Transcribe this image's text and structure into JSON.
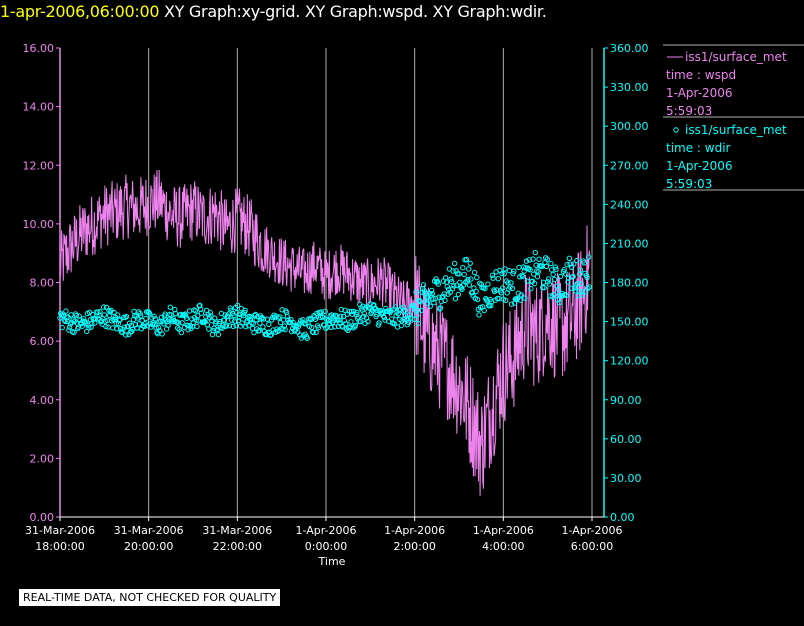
{
  "header": {
    "timestamp": "1-apr-2006,06:00:00",
    "title": "XY Graph:xy-grid.  XY Graph:wspd.  XY Graph:wdir."
  },
  "notice": "REAL-TIME DATA, NOT CHECKED FOR QUALITY",
  "colors": {
    "background": "#000000",
    "wspd": "#ee82ee",
    "wdir": "#00ffff",
    "grid": "#b0b0b0",
    "text": "#ffffff",
    "timestamp": "#ffff00"
  },
  "chart_data": {
    "type": "line",
    "xlabel": "Time",
    "x_ticks": [
      {
        "t": 18,
        "label": [
          "31-Mar-2006",
          "18:00:00"
        ]
      },
      {
        "t": 20,
        "label": [
          "31-Mar-2006",
          "20:00:00"
        ]
      },
      {
        "t": 22,
        "label": [
          "31-Mar-2006",
          "22:00:00"
        ]
      },
      {
        "t": 24,
        "label": [
          "1-Apr-2006",
          "0:00:00"
        ]
      },
      {
        "t": 26,
        "label": [
          "1-Apr-2006",
          "2:00:00"
        ]
      },
      {
        "t": 28,
        "label": [
          "1-Apr-2006",
          "4:00:00"
        ]
      },
      {
        "t": 30,
        "label": [
          "1-Apr-2006",
          "6:00:00"
        ]
      }
    ],
    "xlim": [
      18,
      30
    ],
    "grid": "vertical lines at each time tick",
    "left_axis": {
      "ylim": [
        0,
        16
      ],
      "ticks": [
        "0.00",
        "2.00",
        "4.00",
        "6.00",
        "8.00",
        "10.00",
        "12.00",
        "14.00",
        "16.00"
      ]
    },
    "right_axis": {
      "ylim": [
        0,
        360
      ],
      "ticks": [
        "0.00",
        "30.00",
        "60.00",
        "90.00",
        "120.00",
        "150.00",
        "180.00",
        "210.00",
        "240.00",
        "270.00",
        "300.00",
        "330.00",
        "360.00"
      ]
    },
    "legend": [
      {
        "lines": [
          "iss1/surface_met",
          "time : wspd",
          "1-Apr-2006",
          "5:59:03"
        ],
        "marker": "line",
        "color": "#ee82ee"
      },
      {
        "lines": [
          "iss1/surface_met",
          "time : wdir",
          "1-Apr-2006",
          "5:59:03"
        ],
        "marker": "circle",
        "color": "#00ffff"
      }
    ],
    "series": [
      {
        "name": "iss1/surface_met time : wspd",
        "axis": "left",
        "style": "line",
        "x": [
          18.0,
          18.25,
          18.5,
          18.75,
          19.0,
          19.25,
          19.5,
          19.75,
          20.0,
          20.25,
          20.5,
          20.75,
          21.0,
          21.25,
          21.5,
          21.75,
          22.0,
          22.25,
          22.5,
          22.75,
          23.0,
          23.25,
          23.5,
          23.75,
          24.0,
          24.25,
          24.5,
          24.75,
          25.0,
          25.25,
          25.5,
          25.75,
          26.0,
          26.25,
          26.5,
          26.75,
          27.0,
          27.25,
          27.5,
          27.75,
          28.0,
          28.25,
          28.5,
          28.75,
          29.0,
          29.25,
          29.5,
          29.75,
          29.95
        ],
        "y": [
          8.6,
          9.2,
          9.7,
          10.0,
          10.3,
          10.4,
          10.6,
          10.5,
          10.7,
          10.8,
          10.3,
          10.2,
          10.5,
          10.2,
          10.4,
          9.8,
          10.2,
          9.9,
          9.4,
          9.0,
          8.7,
          8.5,
          8.3,
          8.6,
          8.2,
          8.5,
          8.3,
          8.0,
          7.9,
          8.1,
          7.6,
          7.2,
          7.4,
          6.2,
          5.6,
          5.2,
          4.5,
          3.6,
          2.4,
          3.8,
          5.0,
          5.5,
          6.6,
          6.2,
          6.9,
          6.4,
          6.7,
          7.4,
          8.5
        ],
        "noise": [
          {
            "from": 18.0,
            "to": 22.6,
            "amplitude": 1.1
          },
          {
            "from": 22.6,
            "to": 26.0,
            "amplitude": 0.9
          },
          {
            "from": 26.0,
            "to": 30.0,
            "amplitude": 1.9
          }
        ]
      },
      {
        "name": "iss1/surface_met time : wdir",
        "axis": "right",
        "style": "markers",
        "x": [
          18.0,
          18.25,
          18.5,
          18.75,
          19.0,
          19.25,
          19.5,
          19.75,
          20.0,
          20.25,
          20.5,
          20.75,
          21.0,
          21.25,
          21.5,
          21.75,
          22.0,
          22.25,
          22.5,
          22.75,
          23.0,
          23.25,
          23.5,
          23.75,
          24.0,
          24.25,
          24.5,
          24.75,
          25.0,
          25.25,
          25.5,
          25.75,
          26.0,
          26.25,
          26.5,
          26.75,
          27.0,
          27.25,
          27.5,
          27.75,
          28.0,
          28.25,
          28.5,
          28.75,
          29.0,
          29.25,
          29.5,
          29.75,
          29.95
        ],
        "y": [
          153,
          150,
          148,
          151,
          155,
          150,
          147,
          152,
          150,
          146,
          154,
          148,
          152,
          157,
          145,
          153,
          155,
          150,
          148,
          147,
          152,
          150,
          143,
          148,
          151,
          153,
          150,
          155,
          158,
          154,
          153,
          154,
          158,
          166,
          172,
          178,
          183,
          186,
          165,
          176,
          180,
          176,
          182,
          190,
          185,
          176,
          186,
          183,
          190
        ],
        "noise": [
          {
            "from": 18.0,
            "to": 26.0,
            "amplitude": 8
          },
          {
            "from": 26.0,
            "to": 30.0,
            "amplitude": 14
          }
        ]
      }
    ]
  }
}
